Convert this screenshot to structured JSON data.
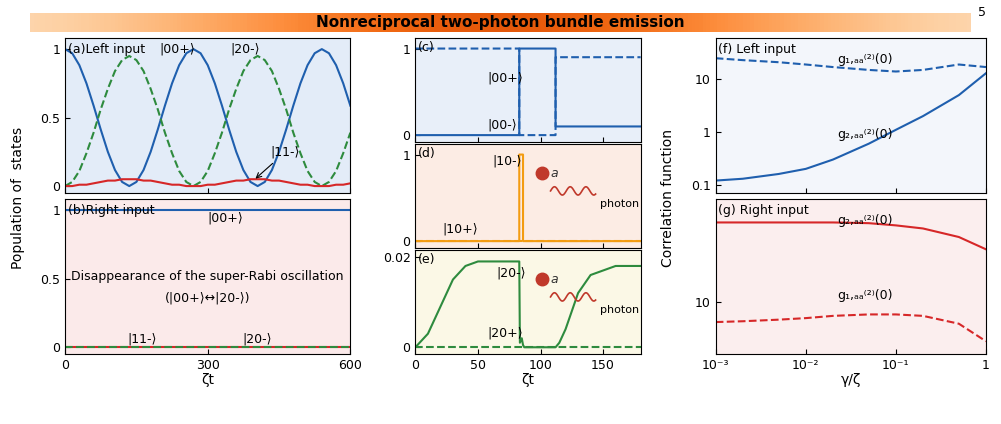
{
  "header": {
    "title": "Nonreciprocal two-photon bundle emission",
    "page": "5"
  },
  "chart_data": [
    {
      "type": "line",
      "title": "(a)Left input",
      "ylabel": "Population of  states",
      "tick_labels": "y",
      "x": [
        0,
        15,
        30,
        45,
        60,
        75,
        90,
        105,
        120,
        135,
        150,
        165,
        180,
        195,
        210,
        225,
        240,
        255,
        270,
        285,
        300,
        315,
        330,
        345,
        360,
        375,
        390,
        405,
        420,
        435,
        450,
        465,
        480,
        495,
        510,
        525,
        540,
        555,
        570,
        585,
        600
      ],
      "xlim": [
        0,
        600
      ],
      "ylim": [
        -0.05,
        1.08
      ],
      "xticks": [
        0,
        300,
        600
      ],
      "yticks": [
        0,
        0.5,
        1
      ],
      "series": [
        {
          "name": "|00+⟩",
          "color": "#1f5fae",
          "line_style": "solid",
          "values": [
            1,
            0.97,
            0.883,
            0.75,
            0.587,
            0.413,
            0.25,
            0.117,
            0.03,
            0,
            0.03,
            0.117,
            0.25,
            0.413,
            0.587,
            0.75,
            0.883,
            0.97,
            1,
            0.97,
            0.883,
            0.75,
            0.587,
            0.413,
            0.25,
            0.117,
            0.03,
            0,
            0.03,
            0.117,
            0.25,
            0.413,
            0.587,
            0.75,
            0.883,
            0.97,
            1,
            0.97,
            0.883,
            0.75,
            0.587
          ]
        },
        {
          "name": "|20-⟩",
          "color": "#2e8b3e",
          "line_style": "dashed",
          "values": [
            0,
            0.03,
            0.11,
            0.24,
            0.39,
            0.56,
            0.71,
            0.84,
            0.92,
            0.95,
            0.92,
            0.84,
            0.71,
            0.56,
            0.39,
            0.24,
            0.11,
            0.03,
            0,
            0.03,
            0.11,
            0.24,
            0.39,
            0.56,
            0.71,
            0.84,
            0.92,
            0.95,
            0.92,
            0.84,
            0.71,
            0.56,
            0.39,
            0.24,
            0.11,
            0.03,
            0,
            0.03,
            0.11,
            0.24,
            0.39
          ]
        },
        {
          "name": "|11-⟩",
          "color": "#d62728",
          "line_style": "solid",
          "values": [
            0,
            0,
            0.01,
            0.01,
            0.02,
            0.03,
            0.04,
            0.04,
            0.05,
            0.05,
            0.05,
            0.04,
            0.04,
            0.03,
            0.02,
            0.01,
            0.01,
            0,
            0,
            0,
            0.01,
            0.01,
            0.02,
            0.03,
            0.04,
            0.04,
            0.05,
            0.05,
            0.05,
            0.04,
            0.04,
            0.03,
            0.02,
            0.01,
            0.01,
            0,
            0,
            0,
            0.01,
            0.01,
            0.02
          ]
        }
      ]
    },
    {
      "type": "line",
      "title": "(b)Right input",
      "xlabel": "ζt",
      "annotations": [
        "Disappearance of the super-Rabi oscillation",
        "(|00+⟩↔|20-⟩)"
      ],
      "x": [
        0,
        600
      ],
      "xlim": [
        0,
        600
      ],
      "ylim": [
        -0.05,
        1.08
      ],
      "xticks": [
        0,
        300,
        600
      ],
      "yticks": [
        0,
        0.5,
        1
      ],
      "series": [
        {
          "name": "|00+⟩",
          "color": "#1f5fae",
          "line_style": "solid",
          "values": [
            1,
            1
          ]
        },
        {
          "name": "|11-⟩",
          "color": "#d62728",
          "line_style": "solid",
          "values": [
            0,
            0
          ]
        },
        {
          "name": "|20-⟩",
          "color": "#2e8b3e",
          "line_style": "dashed",
          "values": [
            0,
            0
          ]
        }
      ]
    },
    {
      "type": "line",
      "title": "(c)",
      "tick_labels": "y",
      "x": [
        0,
        83,
        83.01,
        112,
        112.01,
        180
      ],
      "xlim": [
        0,
        180
      ],
      "ylim": [
        -0.08,
        1.12
      ],
      "xticks": [
        0,
        50,
        100,
        150
      ],
      "yticks": [
        0,
        1
      ],
      "series": [
        {
          "name": "|00+⟩",
          "color": "#1f5fae",
          "line_style": "dashed",
          "values": [
            1,
            1,
            0,
            0,
            0.9,
            0.9
          ]
        },
        {
          "name": "|00-⟩",
          "color": "#1f5fae",
          "line_style": "solid",
          "values": [
            0,
            0,
            1,
            1,
            0.1,
            0.1
          ]
        }
      ]
    },
    {
      "type": "line",
      "title": "(d)",
      "tick_labels": "y",
      "annotations": [
        "a",
        "photon"
      ],
      "x": [
        0,
        83,
        83.01,
        86,
        86.01,
        180
      ],
      "xlim": [
        0,
        180
      ],
      "ylim": [
        -0.08,
        1.12
      ],
      "xticks": [
        0,
        50,
        100,
        150
      ],
      "yticks": [
        0,
        1
      ],
      "series": [
        {
          "name": "|10-⟩",
          "color": "#f39c12",
          "line_style": "solid",
          "values": [
            0,
            0,
            1,
            1,
            0,
            0
          ]
        },
        {
          "name": "|10+⟩",
          "color": "#f39c12",
          "line_style": "dashed",
          "values": [
            0,
            0,
            0,
            0,
            0,
            0
          ]
        }
      ]
    },
    {
      "type": "line",
      "title": "(e)",
      "xlabel": "ζt",
      "annotations": [
        "a",
        "photon"
      ],
      "x": [
        0,
        10,
        20,
        30,
        40,
        50,
        60,
        70,
        83,
        83.5,
        85,
        86,
        87,
        112,
        115,
        120,
        125,
        130,
        140,
        150,
        160,
        170,
        180
      ],
      "xlim": [
        0,
        180
      ],
      "ylim": [
        -0.0015,
        0.0215
      ],
      "xticks": [
        0,
        50,
        100,
        150
      ],
      "yticks": [
        0,
        0.02
      ],
      "series": [
        {
          "name": "|20-⟩",
          "color": "#2e8b3e",
          "line_style": "solid",
          "values": [
            0,
            0.003,
            0.009,
            0.015,
            0.018,
            0.019,
            0.019,
            0.019,
            0.019,
            0.001,
            0.002,
            0.0005,
            0,
            0,
            0.001,
            0.004,
            0.008,
            0.012,
            0.016,
            0.017,
            0.018,
            0.018,
            0.018
          ]
        },
        {
          "name": "|20+⟩",
          "color": "#2e8b3e",
          "line_style": "dashed",
          "values": [
            0,
            0,
            0,
            0,
            0,
            0,
            0,
            0,
            0,
            0,
            0,
            0,
            0,
            0,
            0,
            0,
            0,
            0,
            0,
            0,
            0,
            0,
            0
          ]
        }
      ]
    },
    {
      "type": "line",
      "title": "(f) Left input",
      "ylabel": "Correlation function",
      "log": true,
      "tick_labels": "y",
      "x": [
        0.001,
        0.002,
        0.005,
        0.01,
        0.02,
        0.05,
        0.1,
        0.2,
        0.5,
        1
      ],
      "xlim": [
        0.001,
        1
      ],
      "ylim": [
        0.07,
        60
      ],
      "xticks": [
        {
          "value": 0.001,
          "label": "10⁻³"
        },
        {
          "value": 0.01,
          "label": "10⁻²"
        },
        {
          "value": 0.1,
          "label": "10⁻¹"
        },
        1
      ],
      "yticks": [
        0.1,
        1,
        10
      ],
      "series": [
        {
          "name": "g₁,ₐₐ⁽²⁾(0)",
          "color": "#1f5fae",
          "line_style": "dashed",
          "values": [
            25,
            23,
            21,
            19,
            17,
            15,
            14,
            15,
            19,
            17
          ]
        },
        {
          "name": "g₂,ₐₐ⁽²⁾(0)",
          "color": "#1f5fae",
          "line_style": "solid",
          "values": [
            0.12,
            0.13,
            0.16,
            0.2,
            0.3,
            0.6,
            1.1,
            2,
            5,
            13
          ]
        }
      ]
    },
    {
      "type": "line",
      "title": "(g) Right input",
      "xlabel": "γ/ζ",
      "log": true,
      "x": [
        0.001,
        0.002,
        0.005,
        0.01,
        0.02,
        0.05,
        0.1,
        0.2,
        0.5,
        1
      ],
      "xlim": [
        0.001,
        1
      ],
      "ylim": [
        4,
        60
      ],
      "xticks": [
        {
          "value": 0.001,
          "label": "10⁻³"
        },
        {
          "value": 0.01,
          "label": "10⁻²"
        },
        {
          "value": 0.1,
          "label": "10⁻¹"
        },
        1
      ],
      "yticks": [
        10
      ],
      "series": [
        {
          "name": "g₂,ₐₐ⁽²⁾(0)",
          "color": "#d62728",
          "line_style": "solid",
          "values": [
            40,
            40,
            40,
            40,
            40,
            39.5,
            38,
            36,
            31,
            25
          ]
        },
        {
          "name": "g₁,ₐₐ⁽²⁾(0)",
          "color": "#d62728",
          "line_style": "dashed",
          "values": [
            7,
            7.1,
            7.3,
            7.5,
            7.8,
            8,
            8,
            7.8,
            6.8,
            5
          ]
        }
      ]
    }
  ]
}
